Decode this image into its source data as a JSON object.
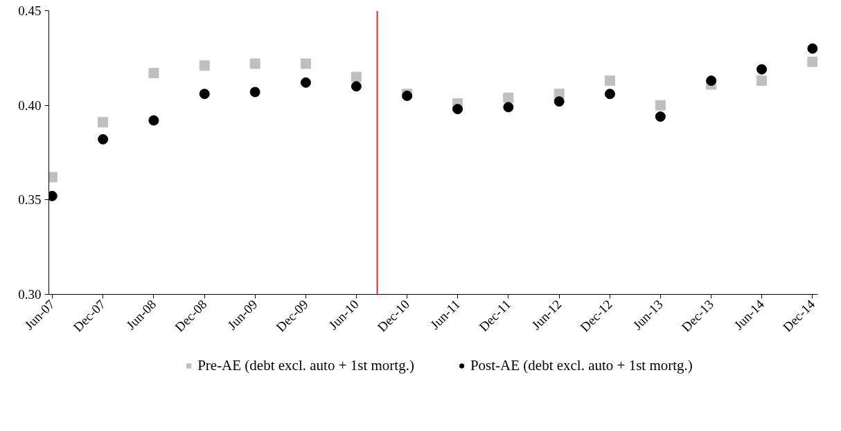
{
  "chart_data": {
    "type": "scatter",
    "x": [
      "2007-06",
      "2007-12",
      "2008-06",
      "2008-12",
      "2009-06",
      "2009-12",
      "2010-06",
      "2010-12",
      "2011-06",
      "2011-12",
      "2012-06",
      "2012-12",
      "2013-06",
      "2013-12",
      "2014-06",
      "2014-12"
    ],
    "series": [
      {
        "name": "Pre-AE (debt excl. auto + 1st mortg.)",
        "color": "#bfbfbf",
        "marker": "square",
        "values": [
          0.362,
          0.391,
          0.417,
          0.421,
          0.422,
          0.422,
          0.415,
          0.406,
          0.401,
          0.404,
          0.406,
          0.413,
          0.4,
          0.411,
          0.413,
          0.423
        ]
      },
      {
        "name": "Post-AE (debt excl. auto + 1st mortg.)",
        "color": "#000000",
        "marker": "circle",
        "values": [
          0.352,
          0.382,
          0.392,
          0.406,
          0.407,
          0.412,
          0.41,
          0.405,
          0.398,
          0.399,
          0.402,
          0.406,
          0.394,
          0.413,
          0.419,
          0.43
        ]
      }
    ],
    "xlim": [
      "2007-05-20",
      "2014-12-20"
    ],
    "xticks": [
      {
        "value": "2007-06",
        "label": "Jun-07"
      },
      {
        "value": "2007-12",
        "label": "Dec-07"
      },
      {
        "value": "2008-06",
        "label": "Jun-08"
      },
      {
        "value": "2008-12",
        "label": "Dec-08"
      },
      {
        "value": "2009-06",
        "label": "Jun-09"
      },
      {
        "value": "2009-12",
        "label": "Dec-09"
      },
      {
        "value": "2010-06",
        "label": "Jun-10"
      },
      {
        "value": "2010-12",
        "label": "Dec-10"
      },
      {
        "value": "2011-06",
        "label": "Jun-11"
      },
      {
        "value": "2011-12",
        "label": "Dec-11"
      },
      {
        "value": "2012-06",
        "label": "Jun-12"
      },
      {
        "value": "2012-12",
        "label": "Dec-12"
      },
      {
        "value": "2013-06",
        "label": "Jun-13"
      },
      {
        "value": "2013-12",
        "label": "Dec-13"
      },
      {
        "value": "2014-06",
        "label": "Jun-14"
      },
      {
        "value": "2014-12",
        "label": "Dec-14"
      }
    ],
    "ylim": [
      0.3,
      0.45
    ],
    "yticks": [
      {
        "value": 0.3,
        "label": "0.30"
      },
      {
        "value": 0.35,
        "label": "0.35"
      },
      {
        "value": 0.4,
        "label": "0.40"
      },
      {
        "value": 0.45,
        "label": "0.45"
      }
    ],
    "ref_lines": [
      {
        "axis": "x",
        "value": "2010-08-15",
        "color": "#ff0000"
      }
    ],
    "grid": false,
    "legend": "bottom"
  }
}
